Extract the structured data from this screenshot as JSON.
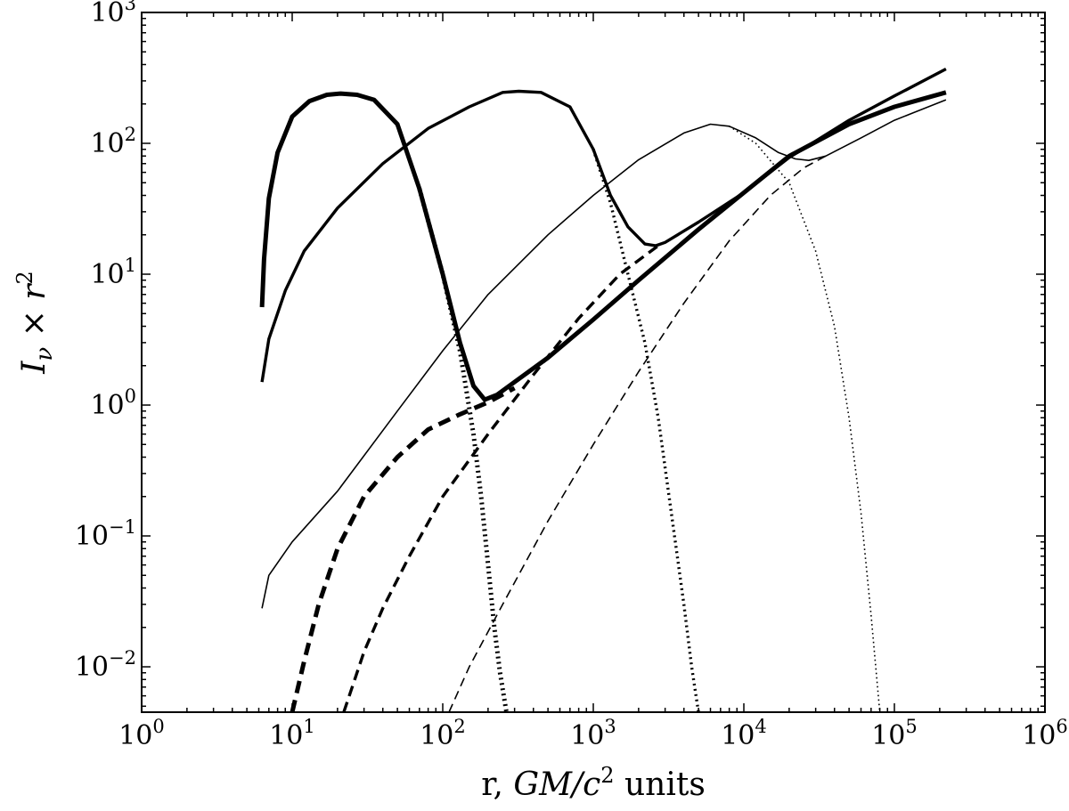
{
  "chart_data": {
    "type": "line",
    "title": "",
    "xlabel": {
      "prefix": "r, ",
      "math": "GM/c",
      "sup": "2",
      "suffix": " units"
    },
    "ylabel": {
      "math": "I",
      "sub": "ν",
      "times": " × ",
      "var": "r",
      "sup": "2"
    },
    "xscale": "log",
    "yscale": "log",
    "xlim": [
      1,
      1000000
    ],
    "ylim": [
      0.0045,
      1000
    ],
    "grid": false,
    "legend": "none",
    "x_ticks": [
      {
        "value": 1,
        "base": "10",
        "exp": "0"
      },
      {
        "value": 10,
        "base": "10",
        "exp": "1"
      },
      {
        "value": 100,
        "base": "10",
        "exp": "2"
      },
      {
        "value": 1000,
        "base": "10",
        "exp": "3"
      },
      {
        "value": 10000,
        "base": "10",
        "exp": "4"
      },
      {
        "value": 100000,
        "base": "10",
        "exp": "5"
      },
      {
        "value": 1000000,
        "base": "10",
        "exp": "6"
      }
    ],
    "y_ticks": [
      {
        "value": 0.01,
        "base": "10",
        "exp": "−2"
      },
      {
        "value": 0.1,
        "base": "10",
        "exp": "−1"
      },
      {
        "value": 1,
        "base": "10",
        "exp": "0"
      },
      {
        "value": 10,
        "base": "10",
        "exp": "1"
      },
      {
        "value": 100,
        "base": "10",
        "exp": "2"
      },
      {
        "value": 1000,
        "base": "10",
        "exp": "3"
      }
    ],
    "series": [
      {
        "style": "solid",
        "weight": "thick",
        "color": "#000000",
        "points": [
          [
            6.3,
            5.6
          ],
          [
            6.5,
            13
          ],
          [
            7,
            38
          ],
          [
            8,
            85
          ],
          [
            10,
            160
          ],
          [
            13,
            210
          ],
          [
            17,
            235
          ],
          [
            21,
            240
          ],
          [
            27,
            235
          ],
          [
            35,
            215
          ],
          [
            50,
            140
          ],
          [
            70,
            45
          ],
          [
            100,
            10
          ],
          [
            130,
            3
          ],
          [
            160,
            1.4
          ],
          [
            190,
            1.1
          ],
          [
            230,
            1.2
          ],
          [
            300,
            1.5
          ],
          [
            500,
            2.3
          ],
          [
            1000,
            4.5
          ],
          [
            2000,
            9
          ],
          [
            5000,
            22
          ],
          [
            10000,
            42
          ],
          [
            20000,
            80
          ],
          [
            50000,
            140
          ],
          [
            100000,
            190
          ],
          [
            220000,
            245
          ]
        ]
      },
      {
        "style": "dotted",
        "weight": "thick",
        "color": "#000000",
        "points": [
          [
            70,
            45
          ],
          [
            100,
            10
          ],
          [
            130,
            2.6
          ],
          [
            160,
            0.6
          ],
          [
            180,
            0.2
          ],
          [
            200,
            0.06
          ],
          [
            220,
            0.02
          ],
          [
            240,
            0.009
          ],
          [
            265,
            0.0045
          ]
        ]
      },
      {
        "style": "dashed",
        "weight": "thick",
        "color": "#000000",
        "points": [
          [
            10,
            0.0045
          ],
          [
            12,
            0.011
          ],
          [
            15,
            0.03
          ],
          [
            20,
            0.08
          ],
          [
            30,
            0.2
          ],
          [
            50,
            0.4
          ],
          [
            80,
            0.65
          ],
          [
            130,
            0.85
          ],
          [
            200,
            1.05
          ],
          [
            300,
            1.35
          ]
        ]
      },
      {
        "style": "solid",
        "weight": "medium",
        "color": "#000000",
        "points": [
          [
            6.3,
            1.5
          ],
          [
            7,
            3.2
          ],
          [
            9,
            7.5
          ],
          [
            12,
            15
          ],
          [
            20,
            32
          ],
          [
            40,
            70
          ],
          [
            80,
            130
          ],
          [
            150,
            190
          ],
          [
            250,
            245
          ],
          [
            320,
            250
          ],
          [
            450,
            245
          ],
          [
            700,
            190
          ],
          [
            1000,
            90
          ],
          [
            1300,
            40
          ],
          [
            1700,
            23
          ],
          [
            2200,
            17
          ],
          [
            2600,
            16.5
          ],
          [
            3000,
            17.5
          ],
          [
            5000,
            25
          ],
          [
            10000,
            42
          ],
          [
            20000,
            78
          ],
          [
            50000,
            150
          ],
          [
            100000,
            230
          ],
          [
            220000,
            370
          ]
        ]
      },
      {
        "style": "dotted",
        "weight": "medium",
        "color": "#000000",
        "points": [
          [
            1000,
            90
          ],
          [
            1300,
            35
          ],
          [
            1700,
            10
          ],
          [
            2200,
            3
          ],
          [
            2700,
            0.8
          ],
          [
            3300,
            0.15
          ],
          [
            4000,
            0.03
          ],
          [
            4500,
            0.01
          ],
          [
            5000,
            0.0045
          ]
        ]
      },
      {
        "style": "dashed",
        "weight": "medium",
        "color": "#000000",
        "points": [
          [
            22,
            0.0045
          ],
          [
            30,
            0.013
          ],
          [
            40,
            0.028
          ],
          [
            60,
            0.07
          ],
          [
            100,
            0.2
          ],
          [
            200,
            0.6
          ],
          [
            400,
            1.7
          ],
          [
            800,
            4.6
          ],
          [
            1500,
            10
          ],
          [
            2700,
            16.5
          ]
        ]
      },
      {
        "style": "solid",
        "weight": "thin",
        "color": "#000000",
        "points": [
          [
            6.3,
            0.028
          ],
          [
            7,
            0.05
          ],
          [
            10,
            0.09
          ],
          [
            20,
            0.22
          ],
          [
            50,
            0.9
          ],
          [
            100,
            2.6
          ],
          [
            200,
            7
          ],
          [
            500,
            20
          ],
          [
            1000,
            40
          ],
          [
            2000,
            75
          ],
          [
            4000,
            120
          ],
          [
            6000,
            140
          ],
          [
            8000,
            135
          ],
          [
            12000,
            110
          ],
          [
            17000,
            85
          ],
          [
            22000,
            76
          ],
          [
            27000,
            74
          ],
          [
            35000,
            80
          ],
          [
            60000,
            110
          ],
          [
            100000,
            150
          ],
          [
            220000,
            215
          ]
        ]
      },
      {
        "style": "dotted",
        "weight": "thin",
        "color": "#000000",
        "points": [
          [
            8000,
            135
          ],
          [
            12000,
            100
          ],
          [
            20000,
            50
          ],
          [
            30000,
            15
          ],
          [
            40000,
            4
          ],
          [
            50000,
            0.8
          ],
          [
            60000,
            0.15
          ],
          [
            70000,
            0.025
          ],
          [
            80000,
            0.0045
          ]
        ]
      },
      {
        "style": "dashed",
        "weight": "thin",
        "color": "#000000",
        "points": [
          [
            110,
            0.0045
          ],
          [
            150,
            0.01
          ],
          [
            250,
            0.03
          ],
          [
            500,
            0.13
          ],
          [
            1000,
            0.5
          ],
          [
            2000,
            1.8
          ],
          [
            4000,
            6
          ],
          [
            8000,
            18
          ],
          [
            15000,
            40
          ],
          [
            25000,
            65
          ],
          [
            35000,
            80
          ]
        ]
      }
    ]
  }
}
